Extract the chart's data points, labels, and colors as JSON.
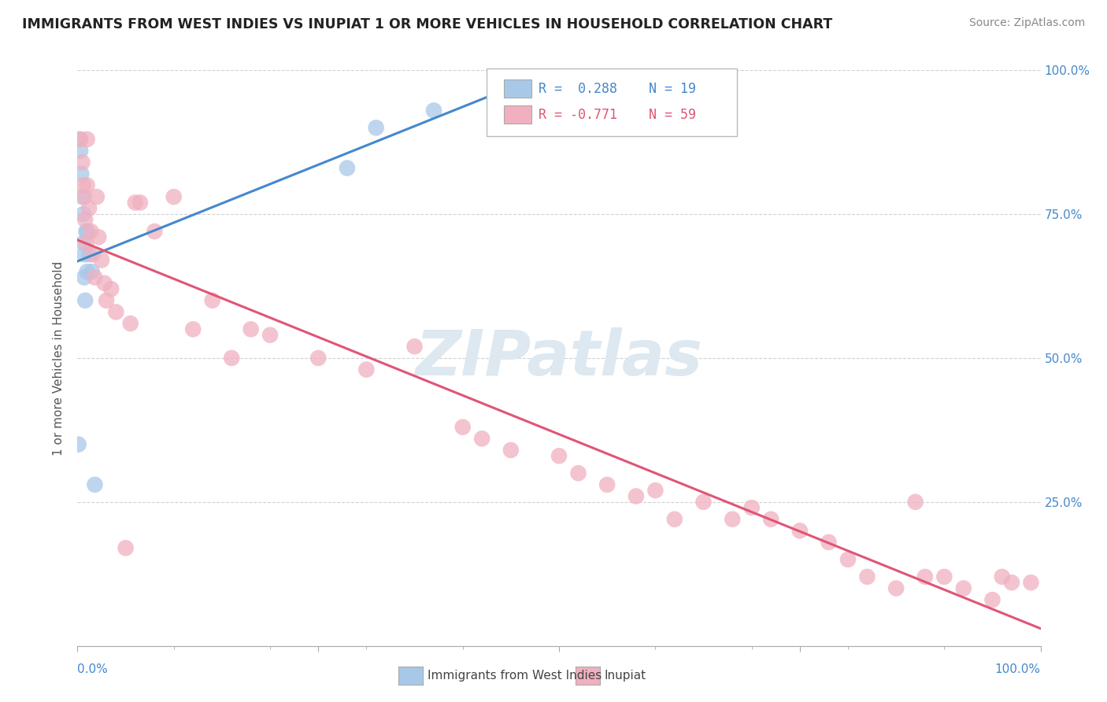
{
  "title": "IMMIGRANTS FROM WEST INDIES VS INUPIAT 1 OR MORE VEHICLES IN HOUSEHOLD CORRELATION CHART",
  "source": "Source: ZipAtlas.com",
  "ylabel": "1 or more Vehicles in Household",
  "R1": 0.288,
  "N1": 19,
  "R2": -0.771,
  "N2": 59,
  "color_blue": "#a8c8e8",
  "color_pink": "#f0b0c0",
  "line_color_blue": "#4488cc",
  "line_color_pink": "#e05575",
  "background": "#ffffff",
  "grid_color": "#cccccc",
  "watermark_color": "#dde8f0",
  "legend_label1": "Immigrants from West Indies",
  "legend_label2": "Inupiat",
  "blue_points_x": [
    0.001,
    0.002,
    0.003,
    0.004,
    0.005,
    0.006,
    0.006,
    0.007,
    0.007,
    0.008,
    0.009,
    0.01,
    0.01,
    0.012,
    0.015,
    0.018,
    0.28,
    0.31,
    0.37
  ],
  "blue_points_y": [
    0.35,
    0.88,
    0.86,
    0.82,
    0.78,
    0.75,
    0.7,
    0.68,
    0.64,
    0.6,
    0.72,
    0.65,
    0.72,
    0.68,
    0.65,
    0.28,
    0.83,
    0.9,
    0.93
  ],
  "pink_points_x": [
    0.003,
    0.005,
    0.006,
    0.007,
    0.008,
    0.009,
    0.01,
    0.01,
    0.012,
    0.014,
    0.016,
    0.018,
    0.02,
    0.022,
    0.025,
    0.028,
    0.03,
    0.035,
    0.04,
    0.05,
    0.055,
    0.06,
    0.065,
    0.08,
    0.1,
    0.12,
    0.14,
    0.16,
    0.18,
    0.2,
    0.25,
    0.3,
    0.35,
    0.4,
    0.42,
    0.45,
    0.5,
    0.52,
    0.55,
    0.58,
    0.6,
    0.62,
    0.65,
    0.68,
    0.7,
    0.72,
    0.75,
    0.78,
    0.8,
    0.82,
    0.85,
    0.87,
    0.88,
    0.9,
    0.92,
    0.95,
    0.96,
    0.97,
    0.99
  ],
  "pink_points_y": [
    0.88,
    0.84,
    0.8,
    0.78,
    0.74,
    0.7,
    0.8,
    0.88,
    0.76,
    0.72,
    0.68,
    0.64,
    0.78,
    0.71,
    0.67,
    0.63,
    0.6,
    0.62,
    0.58,
    0.17,
    0.56,
    0.77,
    0.77,
    0.72,
    0.78,
    0.55,
    0.6,
    0.5,
    0.55,
    0.54,
    0.5,
    0.48,
    0.52,
    0.38,
    0.36,
    0.34,
    0.33,
    0.3,
    0.28,
    0.26,
    0.27,
    0.22,
    0.25,
    0.22,
    0.24,
    0.22,
    0.2,
    0.18,
    0.15,
    0.12,
    0.1,
    0.25,
    0.12,
    0.12,
    0.1,
    0.08,
    0.12,
    0.11,
    0.11
  ],
  "xlim": [
    0.0,
    1.0
  ],
  "ylim": [
    0.0,
    1.0
  ]
}
